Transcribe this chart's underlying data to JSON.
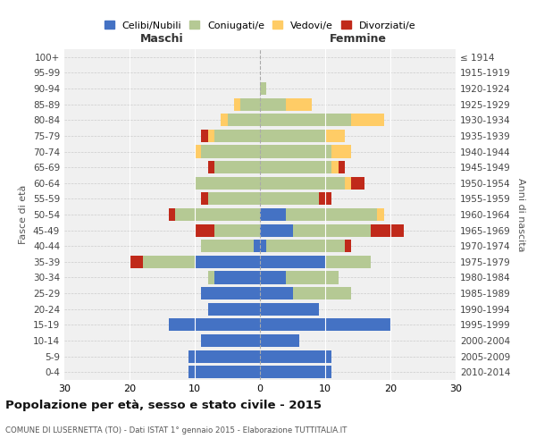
{
  "age_groups": [
    "0-4",
    "5-9",
    "10-14",
    "15-19",
    "20-24",
    "25-29",
    "30-34",
    "35-39",
    "40-44",
    "45-49",
    "50-54",
    "55-59",
    "60-64",
    "65-69",
    "70-74",
    "75-79",
    "80-84",
    "85-89",
    "90-94",
    "95-99",
    "100+"
  ],
  "birth_years": [
    "2010-2014",
    "2005-2009",
    "2000-2004",
    "1995-1999",
    "1990-1994",
    "1985-1989",
    "1980-1984",
    "1975-1979",
    "1970-1974",
    "1965-1969",
    "1960-1964",
    "1955-1959",
    "1950-1954",
    "1945-1949",
    "1940-1944",
    "1935-1939",
    "1930-1934",
    "1925-1929",
    "1920-1924",
    "1915-1919",
    "≤ 1914"
  ],
  "male": {
    "celibi": [
      11,
      11,
      9,
      14,
      8,
      9,
      7,
      10,
      1,
      0,
      0,
      0,
      0,
      0,
      0,
      0,
      0,
      0,
      0,
      0,
      0
    ],
    "coniugati": [
      0,
      0,
      0,
      0,
      0,
      0,
      1,
      8,
      8,
      7,
      13,
      8,
      10,
      7,
      9,
      7,
      5,
      3,
      0,
      0,
      0
    ],
    "vedovi": [
      0,
      0,
      0,
      0,
      0,
      0,
      0,
      0,
      0,
      0,
      0,
      0,
      0,
      0,
      1,
      1,
      1,
      1,
      0,
      0,
      0
    ],
    "divorziati": [
      0,
      0,
      0,
      0,
      0,
      0,
      0,
      2,
      0,
      3,
      1,
      1,
      0,
      1,
      0,
      1,
      0,
      0,
      0,
      0,
      0
    ]
  },
  "female": {
    "nubili": [
      11,
      11,
      6,
      20,
      9,
      5,
      4,
      10,
      1,
      5,
      4,
      0,
      0,
      0,
      0,
      0,
      0,
      0,
      0,
      0,
      0
    ],
    "coniugate": [
      0,
      0,
      0,
      0,
      0,
      9,
      8,
      7,
      12,
      12,
      14,
      9,
      13,
      11,
      11,
      10,
      14,
      4,
      1,
      0,
      0
    ],
    "vedove": [
      0,
      0,
      0,
      0,
      0,
      0,
      0,
      0,
      0,
      0,
      1,
      0,
      1,
      1,
      3,
      3,
      5,
      4,
      0,
      0,
      0
    ],
    "divorziate": [
      0,
      0,
      0,
      0,
      0,
      0,
      0,
      0,
      1,
      5,
      0,
      2,
      2,
      1,
      0,
      0,
      0,
      0,
      0,
      0,
      0
    ]
  },
  "colors": {
    "celibi_nubili": "#4472C4",
    "coniugati": "#B5C994",
    "vedovi": "#FFCC66",
    "divorziati": "#C0291A"
  },
  "title": "Popolazione per età, sesso e stato civile - 2015",
  "subtitle": "COMUNE DI LUSERNETTA (TO) - Dati ISTAT 1° gennaio 2015 - Elaborazione TUTTITALIA.IT",
  "xlabel_left": "Maschi",
  "xlabel_right": "Femmine",
  "ylabel_left": "Fasce di età",
  "ylabel_right": "Anni di nascita",
  "xlim": 30,
  "legend_labels": [
    "Celibi/Nubili",
    "Coniugati/e",
    "Vedovi/e",
    "Divorziati/e"
  ],
  "bg_color": "#f0f0f0"
}
